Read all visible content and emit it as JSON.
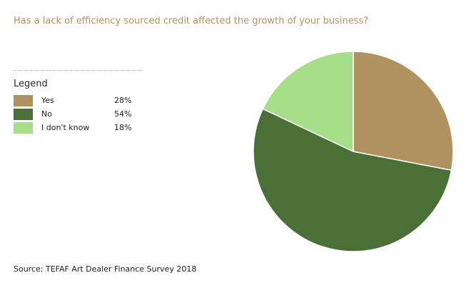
{
  "title": "Has a lack of efficiency sourced credit affected the growth of your business?",
  "legend": {
    "title": "Legend",
    "items": [
      {
        "label": "Yes",
        "value": "28%",
        "color": "#b09260"
      },
      {
        "label": "No",
        "value": "54%",
        "color": "#4a7038"
      },
      {
        "label": "I don't know",
        "value": "18%",
        "color": "#a6dd87"
      }
    ]
  },
  "source": "Source: TEFAF Art Dealer Finance Survey 2018",
  "chart_data": {
    "type": "pie",
    "title": "Has a lack of efficiency sourced credit affected the growth of your business?",
    "categories": [
      "Yes",
      "No",
      "I don't know"
    ],
    "values": [
      28,
      54,
      18
    ],
    "unit": "%",
    "colors": [
      "#b09260",
      "#4a7038",
      "#a6dd87"
    ],
    "start_angle": "top",
    "direction": "clockwise",
    "legend_position": "left"
  }
}
